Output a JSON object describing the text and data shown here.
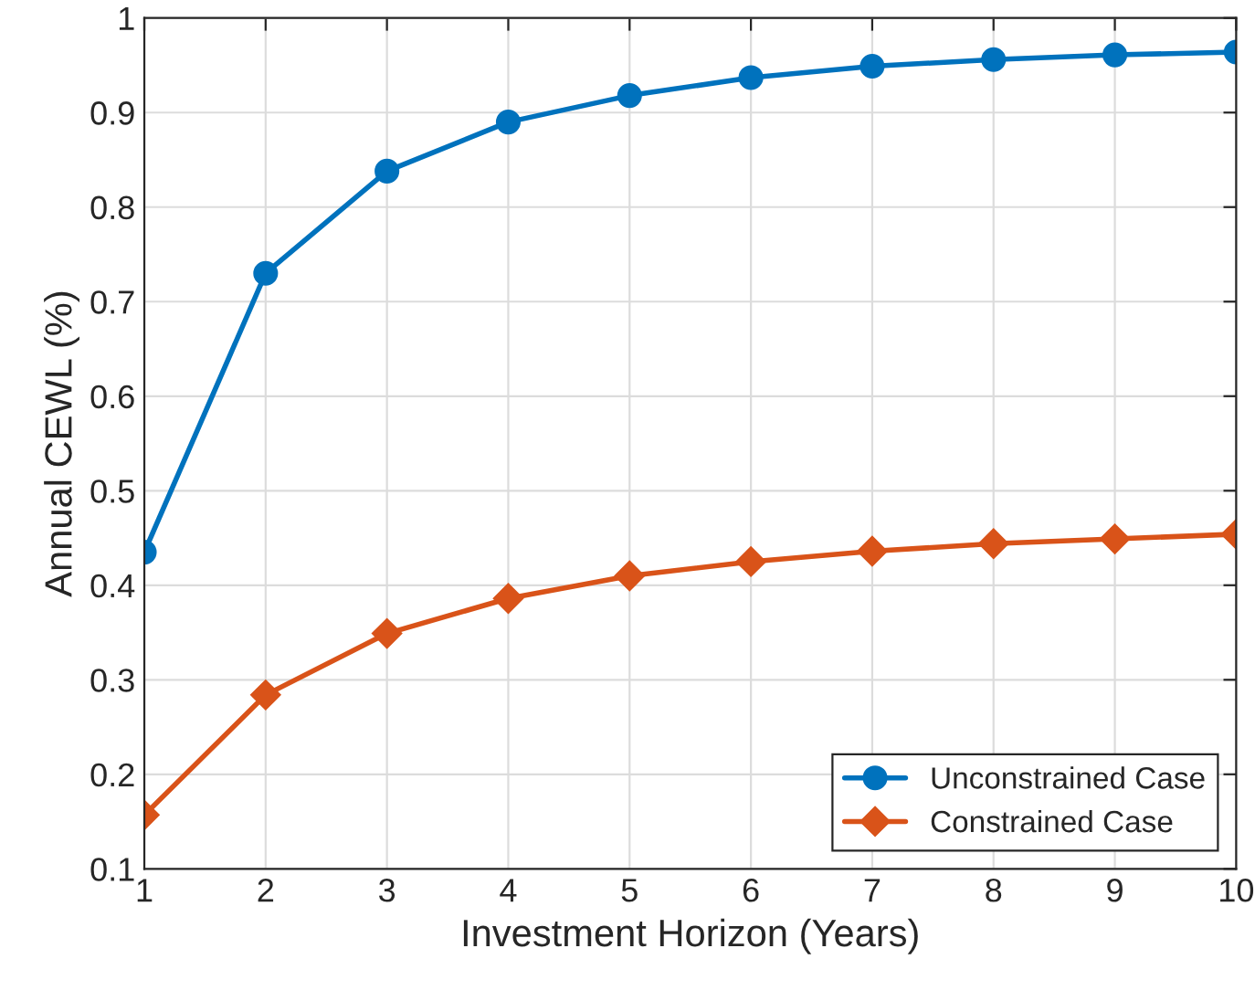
{
  "chart_data": {
    "type": "line",
    "xlabel": "Investment Horizon (Years)",
    "ylabel": "Annual CEWL (%)",
    "x": [
      1,
      2,
      3,
      4,
      5,
      6,
      7,
      8,
      9,
      10
    ],
    "series": [
      {
        "name": "Unconstrained Case",
        "color": "#0072bd",
        "marker": "circle",
        "values": [
          0.435,
          0.73,
          0.838,
          0.89,
          0.918,
          0.937,
          0.949,
          0.956,
          0.961,
          0.964
        ]
      },
      {
        "name": "Constrained Case",
        "color": "#d95319",
        "marker": "diamond",
        "values": [
          0.157,
          0.284,
          0.349,
          0.386,
          0.41,
          0.425,
          0.436,
          0.444,
          0.449,
          0.454
        ]
      }
    ],
    "xlim": [
      1,
      10
    ],
    "xticks": [
      1,
      2,
      3,
      4,
      5,
      6,
      7,
      8,
      9,
      10
    ],
    "ylim": [
      0.1,
      1
    ],
    "yticks": [
      0.1,
      0.2,
      0.3,
      0.4,
      0.5,
      0.6,
      0.7,
      0.8,
      0.9,
      1
    ],
    "grid": true,
    "legend": "bottom right",
    "line_style": "solid"
  }
}
